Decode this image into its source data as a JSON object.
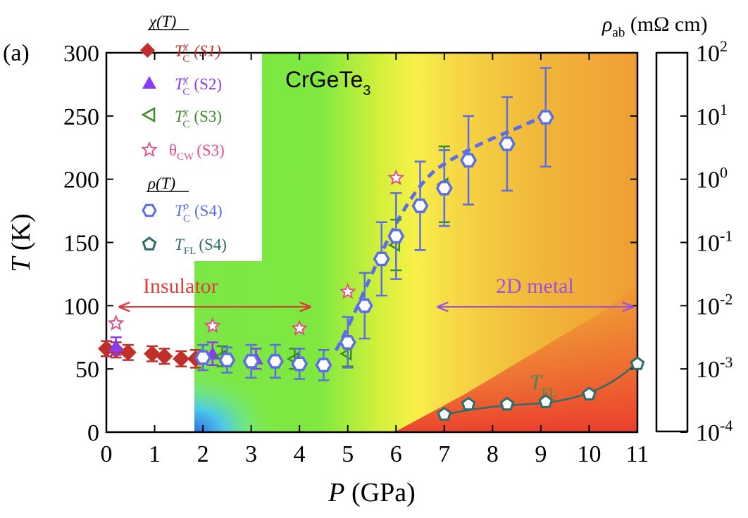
{
  "chart_data": {
    "type": "scatter",
    "panel_label": "(a)",
    "xlabel": "P (GPa)",
    "ylabel": "T (K)",
    "xlim": [
      0,
      11
    ],
    "ylim": [
      0,
      300
    ],
    "x_ticks": [
      0,
      1,
      2,
      3,
      4,
      5,
      6,
      7,
      8,
      9,
      10,
      11
    ],
    "y_ticks": [
      0,
      50,
      100,
      150,
      200,
      250,
      300
    ],
    "compound": "CrGeTe3",
    "colorbar": {
      "title": "ρab (mΩ cm)",
      "scale": "log",
      "range": [
        0.0001,
        100
      ],
      "tick_labels": [
        "10^2",
        "10^1",
        "10^0",
        "10^-1",
        "10^-2",
        "10^-3",
        "10^-4"
      ]
    },
    "legend_groups": [
      "χ(T)",
      "ρ(T)"
    ],
    "series": [
      {
        "name": "T_C^χ (S1)",
        "marker": "diamond",
        "color": "#c0302b",
        "x": [
          0.0,
          0.2,
          0.45,
          0.95,
          1.2,
          1.55,
          1.85
        ],
        "y": [
          66,
          65,
          63,
          62,
          60,
          58,
          58
        ],
        "err": [
          6,
          6,
          6,
          6,
          6,
          6,
          7
        ]
      },
      {
        "name": "T_C^χ (S2)",
        "marker": "triangle",
        "color": "#8a3cf0",
        "x": [
          0.2,
          2.2,
          3.1
        ],
        "y": [
          68,
          62,
          58
        ],
        "err": [
          7,
          9,
          8
        ]
      },
      {
        "name": "T_C^χ (S3)",
        "marker": "left-triangle-open",
        "color": "#3d8c2a",
        "x": [
          2.4,
          3.9,
          5.0,
          6.0,
          7.0
        ],
        "y": [
          60,
          58,
          62,
          148,
          196
        ],
        "err": [
          8,
          8,
          10,
          20,
          30
        ]
      },
      {
        "name": "θCW (S3)",
        "marker": "star-open",
        "color": "#e0508c",
        "x": [
          0.2,
          2.2,
          4.0,
          5.0,
          6.0
        ],
        "y": [
          86,
          84,
          82,
          111,
          201
        ],
        "err": [
          0,
          0,
          0,
          0,
          0
        ]
      },
      {
        "name": "T_C^ρ (S4)",
        "marker": "hexagon-open",
        "color": "#5b6ee6",
        "x": [
          2.0,
          2.5,
          3.0,
          3.5,
          4.0,
          4.5,
          5.0,
          5.35,
          5.7,
          6.0,
          6.5,
          7.0,
          7.5,
          8.3,
          9.1
        ],
        "y": [
          59,
          57,
          56,
          56,
          54,
          53,
          71,
          100,
          137,
          155,
          179,
          193,
          215,
          228,
          249
        ],
        "err": [
          10,
          10,
          13,
          13,
          12,
          12,
          20,
          26,
          29,
          34,
          35,
          30,
          35,
          37,
          39
        ]
      },
      {
        "name": "T_FL (S4)",
        "marker": "pentagon-open",
        "color": "#2e6b6b",
        "x": [
          7.0,
          7.5,
          8.3,
          9.1,
          10.0,
          11.0
        ],
        "y": [
          14,
          22,
          22,
          24,
          30,
          54
        ],
        "err": [
          0,
          0,
          0,
          0,
          0,
          0
        ]
      }
    ],
    "annotations": {
      "insulator": "Insulator",
      "metal": "2D metal",
      "tfl_label": "T_FL"
    }
  },
  "legend": {
    "chi_title": "χ(T)",
    "rho_title": "ρ(T)",
    "s1": "(S1)",
    "s2": "(S2)",
    "s3": "(S3)",
    "s3b": "(S3)",
    "s4a": "(S4)",
    "s4b": "(S4)",
    "theta": "θ",
    "theta_sub": "CW",
    "sup_chi": "χ",
    "sup_rho": "ρ",
    "sub_c": "C",
    "sub_fl": "FL",
    "T": "T"
  },
  "colors": {
    "red": "#c0302b",
    "violet": "#8a3cf0",
    "green": "#3d8c2a",
    "pink": "#e0508c",
    "blue": "#5b6ee6",
    "teal": "#2e6b6b",
    "arrow_red": "#e03c3c",
    "arrow_violet": "#a050e0"
  }
}
